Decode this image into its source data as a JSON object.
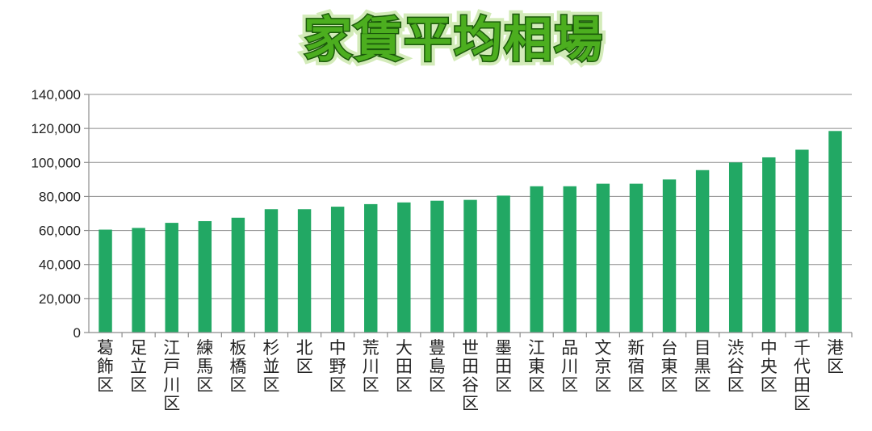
{
  "chart_data": {
    "type": "bar",
    "title": "家賃平均相場",
    "categories": [
      "葛飾区",
      "足立区",
      "江戸川区",
      "練馬区",
      "板橋区",
      "杉並区",
      "北区",
      "中野区",
      "荒川区",
      "大田区",
      "豊島区",
      "世田谷区",
      "墨田区",
      "江東区",
      "品川区",
      "文京区",
      "新宿区",
      "台東区",
      "目黒区",
      "渋谷区",
      "中央区",
      "千代田区",
      "港区"
    ],
    "values": [
      60500,
      61500,
      64500,
      65500,
      67500,
      72500,
      72500,
      74000,
      75500,
      76500,
      77500,
      78000,
      80500,
      86000,
      86000,
      87500,
      87500,
      90000,
      95500,
      100000,
      103000,
      107500,
      118500
    ],
    "ylim": [
      0,
      140000
    ],
    "yticks": [
      "0",
      "20,000",
      "40,000",
      "60,000",
      "80,000",
      "100,000",
      "120,000",
      "140,000"
    ],
    "ytick_values": [
      0,
      20000,
      40000,
      60000,
      80000,
      100000,
      120000,
      140000
    ],
    "xlabel": "",
    "ylabel": "",
    "grid": true,
    "legend": "none",
    "bar_color": "#22a864",
    "title_color": "#4cae1f"
  }
}
